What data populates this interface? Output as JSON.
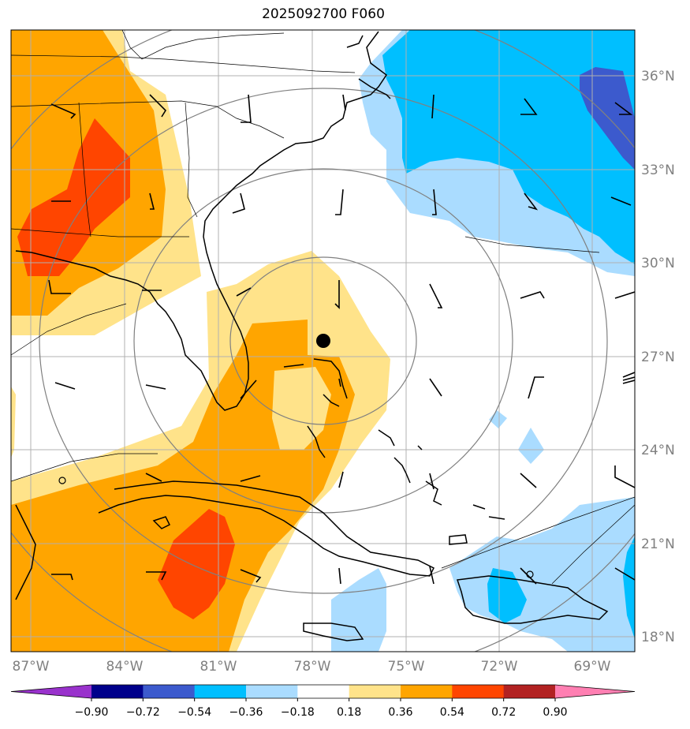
{
  "title": "2025092700 F060",
  "map": {
    "lat_labels": [
      "36°N",
      "33°N",
      "30°N",
      "27°N",
      "24°N",
      "21°N",
      "18°N"
    ],
    "lon_labels": [
      "87°W",
      "84°W",
      "81°W",
      "78°W",
      "75°W",
      "72°W",
      "69°W"
    ],
    "center_marker": {
      "lat": 27.5,
      "lon": -78.0
    }
  },
  "colorbar": {
    "ticks": [
      "−0.90",
      "−0.72",
      "−0.54",
      "−0.36",
      "−0.18",
      "0.18",
      "0.36",
      "0.54",
      "0.72",
      "0.90"
    ],
    "colors": [
      "#9932cc",
      "#00008b",
      "#3c5acd",
      "#00bfff",
      "#aadcff",
      "#ffffff",
      "#ffe38a",
      "#ffa500",
      "#ff4500",
      "#b22222",
      "#ff7fb2"
    ]
  },
  "colors": {
    "neg_strong": "#3c5acd",
    "neg_mid": "#00bfff",
    "neg_light": "#aadcff",
    "pos_light": "#ffe38a",
    "pos_mid": "#ffa500",
    "pos_strong": "#ff4500",
    "grid": "#b0b0b0",
    "rings": "#808080"
  }
}
